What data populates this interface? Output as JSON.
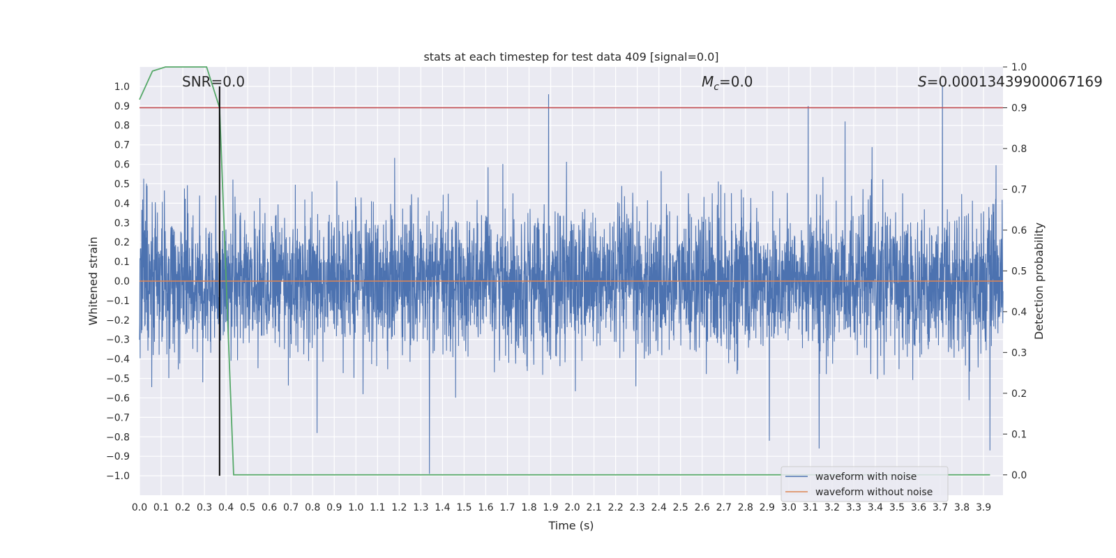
{
  "chart_data": {
    "type": "line",
    "title": "stats at each timestep for test data 409 [signal=0.0]",
    "xlabel": "Time (s)",
    "ylabel_left": "Whitened strain",
    "ylabel_right": "Detection probability",
    "xlim": [
      0.0,
      3.99
    ],
    "ylim_left": [
      -1.1,
      1.1
    ],
    "ylim_right": [
      -0.05,
      1.0
    ],
    "x_ticks": [
      "0.0",
      "0.1",
      "0.2",
      "0.3",
      "0.4",
      "0.5",
      "0.6",
      "0.7",
      "0.8",
      "0.9",
      "1.0",
      "1.1",
      "1.2",
      "1.3",
      "1.4",
      "1.5",
      "1.6",
      "1.7",
      "1.8",
      "1.9",
      "2.0",
      "2.1",
      "2.2",
      "2.3",
      "2.4",
      "2.5",
      "2.6",
      "2.7",
      "2.8",
      "2.9",
      "3.0",
      "3.1",
      "3.2",
      "3.3",
      "3.4",
      "3.5",
      "3.6",
      "3.7",
      "3.8",
      "3.9"
    ],
    "y_ticks_left": [
      "1.0",
      "0.9",
      "0.8",
      "0.7",
      "0.6",
      "0.5",
      "0.4",
      "0.3",
      "0.2",
      "0.1",
      "0.0",
      "−0.1",
      "−0.2",
      "−0.3",
      "−0.4",
      "−0.5",
      "−0.6",
      "−0.7",
      "−0.8",
      "−0.9",
      "−1.0"
    ],
    "y_ticks_right": [
      "1.0",
      "0.9",
      "0.8",
      "0.7",
      "0.6",
      "0.5",
      "0.4",
      "0.3",
      "0.2",
      "0.1",
      "0.0"
    ],
    "grid": true,
    "legend_position": "bottom-right",
    "annotations": {
      "snr": "SNR=0.0",
      "mc_symbol": "M",
      "mc_sub": "c",
      "mc_value": "=0.0",
      "s_symbol": "S",
      "s_value": "=0.00013439900067169"
    },
    "series": [
      {
        "name": "waveform with noise",
        "color": "#4c72b0",
        "axis": "left",
        "kind": "noise",
        "spread": 0.18,
        "peaks": [
          {
            "x": 1.89,
            "y": 0.96
          },
          {
            "x": 3.09,
            "y": 0.9
          },
          {
            "x": 3.26,
            "y": 0.82
          },
          {
            "x": 3.71,
            "y": 1.0
          },
          {
            "x": 1.34,
            "y": -0.99
          },
          {
            "x": 3.14,
            "y": -0.86
          },
          {
            "x": 3.93,
            "y": -0.87
          },
          {
            "x": 0.82,
            "y": -0.78
          },
          {
            "x": 2.91,
            "y": -0.82
          }
        ]
      },
      {
        "name": "waveform without noise",
        "color": "#dd8452",
        "axis": "left",
        "x": [
          0.0,
          3.99
        ],
        "y": [
          0.0,
          0.0
        ]
      },
      {
        "name": "detection probability",
        "color": "#55a868",
        "axis": "right",
        "x": [
          0.0,
          0.06,
          0.12,
          0.31,
          0.37,
          0.435,
          3.93
        ],
        "y": [
          0.92,
          0.99,
          1.0,
          1.0,
          0.9,
          0.0,
          0.0
        ]
      }
    ],
    "threshold": {
      "axis": "right",
      "value": 0.9,
      "color": "#c44e52"
    },
    "event_marker": {
      "x": 0.37,
      "color": "#000000",
      "y_range": [
        -1.0,
        1.0
      ]
    }
  }
}
